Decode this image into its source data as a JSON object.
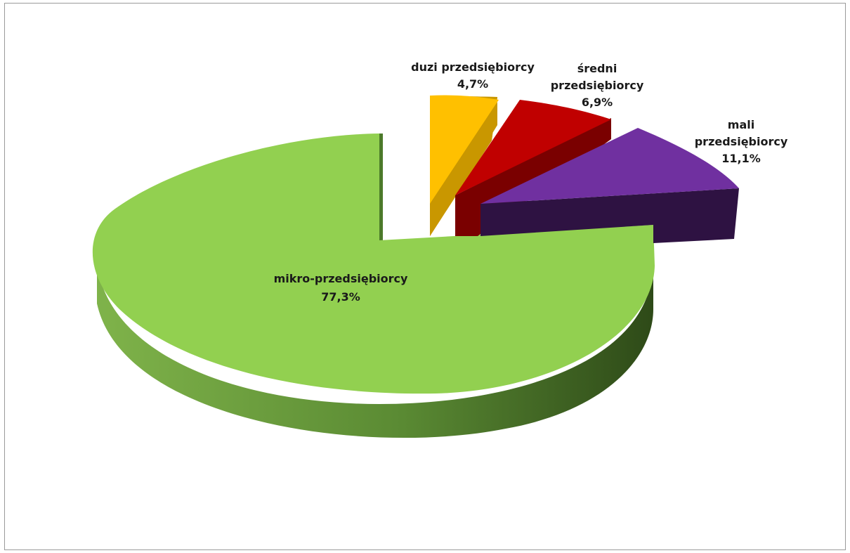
{
  "chart_data": {
    "type": "pie",
    "style": "3d-exploded",
    "slices": [
      {
        "label": "duzi przedsiębiorcy",
        "value": 4.7,
        "value_text": "4,7%",
        "color": "#FFC000",
        "dark": "#C99700"
      },
      {
        "label": "średni przedsiębiorcy",
        "value": 6.9,
        "value_text": "6,9%",
        "color": "#C00000",
        "dark": "#7A0000"
      },
      {
        "label": "mali przedsiębiorcy",
        "value": 11.1,
        "value_text": "11,1%",
        "color": "#7030A0",
        "dark": "#2E1242"
      },
      {
        "label": "mikro-przedsiębiorcy",
        "value": 77.3,
        "value_text": "77,3%",
        "color": "#92D050",
        "dark": "#3E5C22"
      }
    ],
    "legend": "none"
  }
}
